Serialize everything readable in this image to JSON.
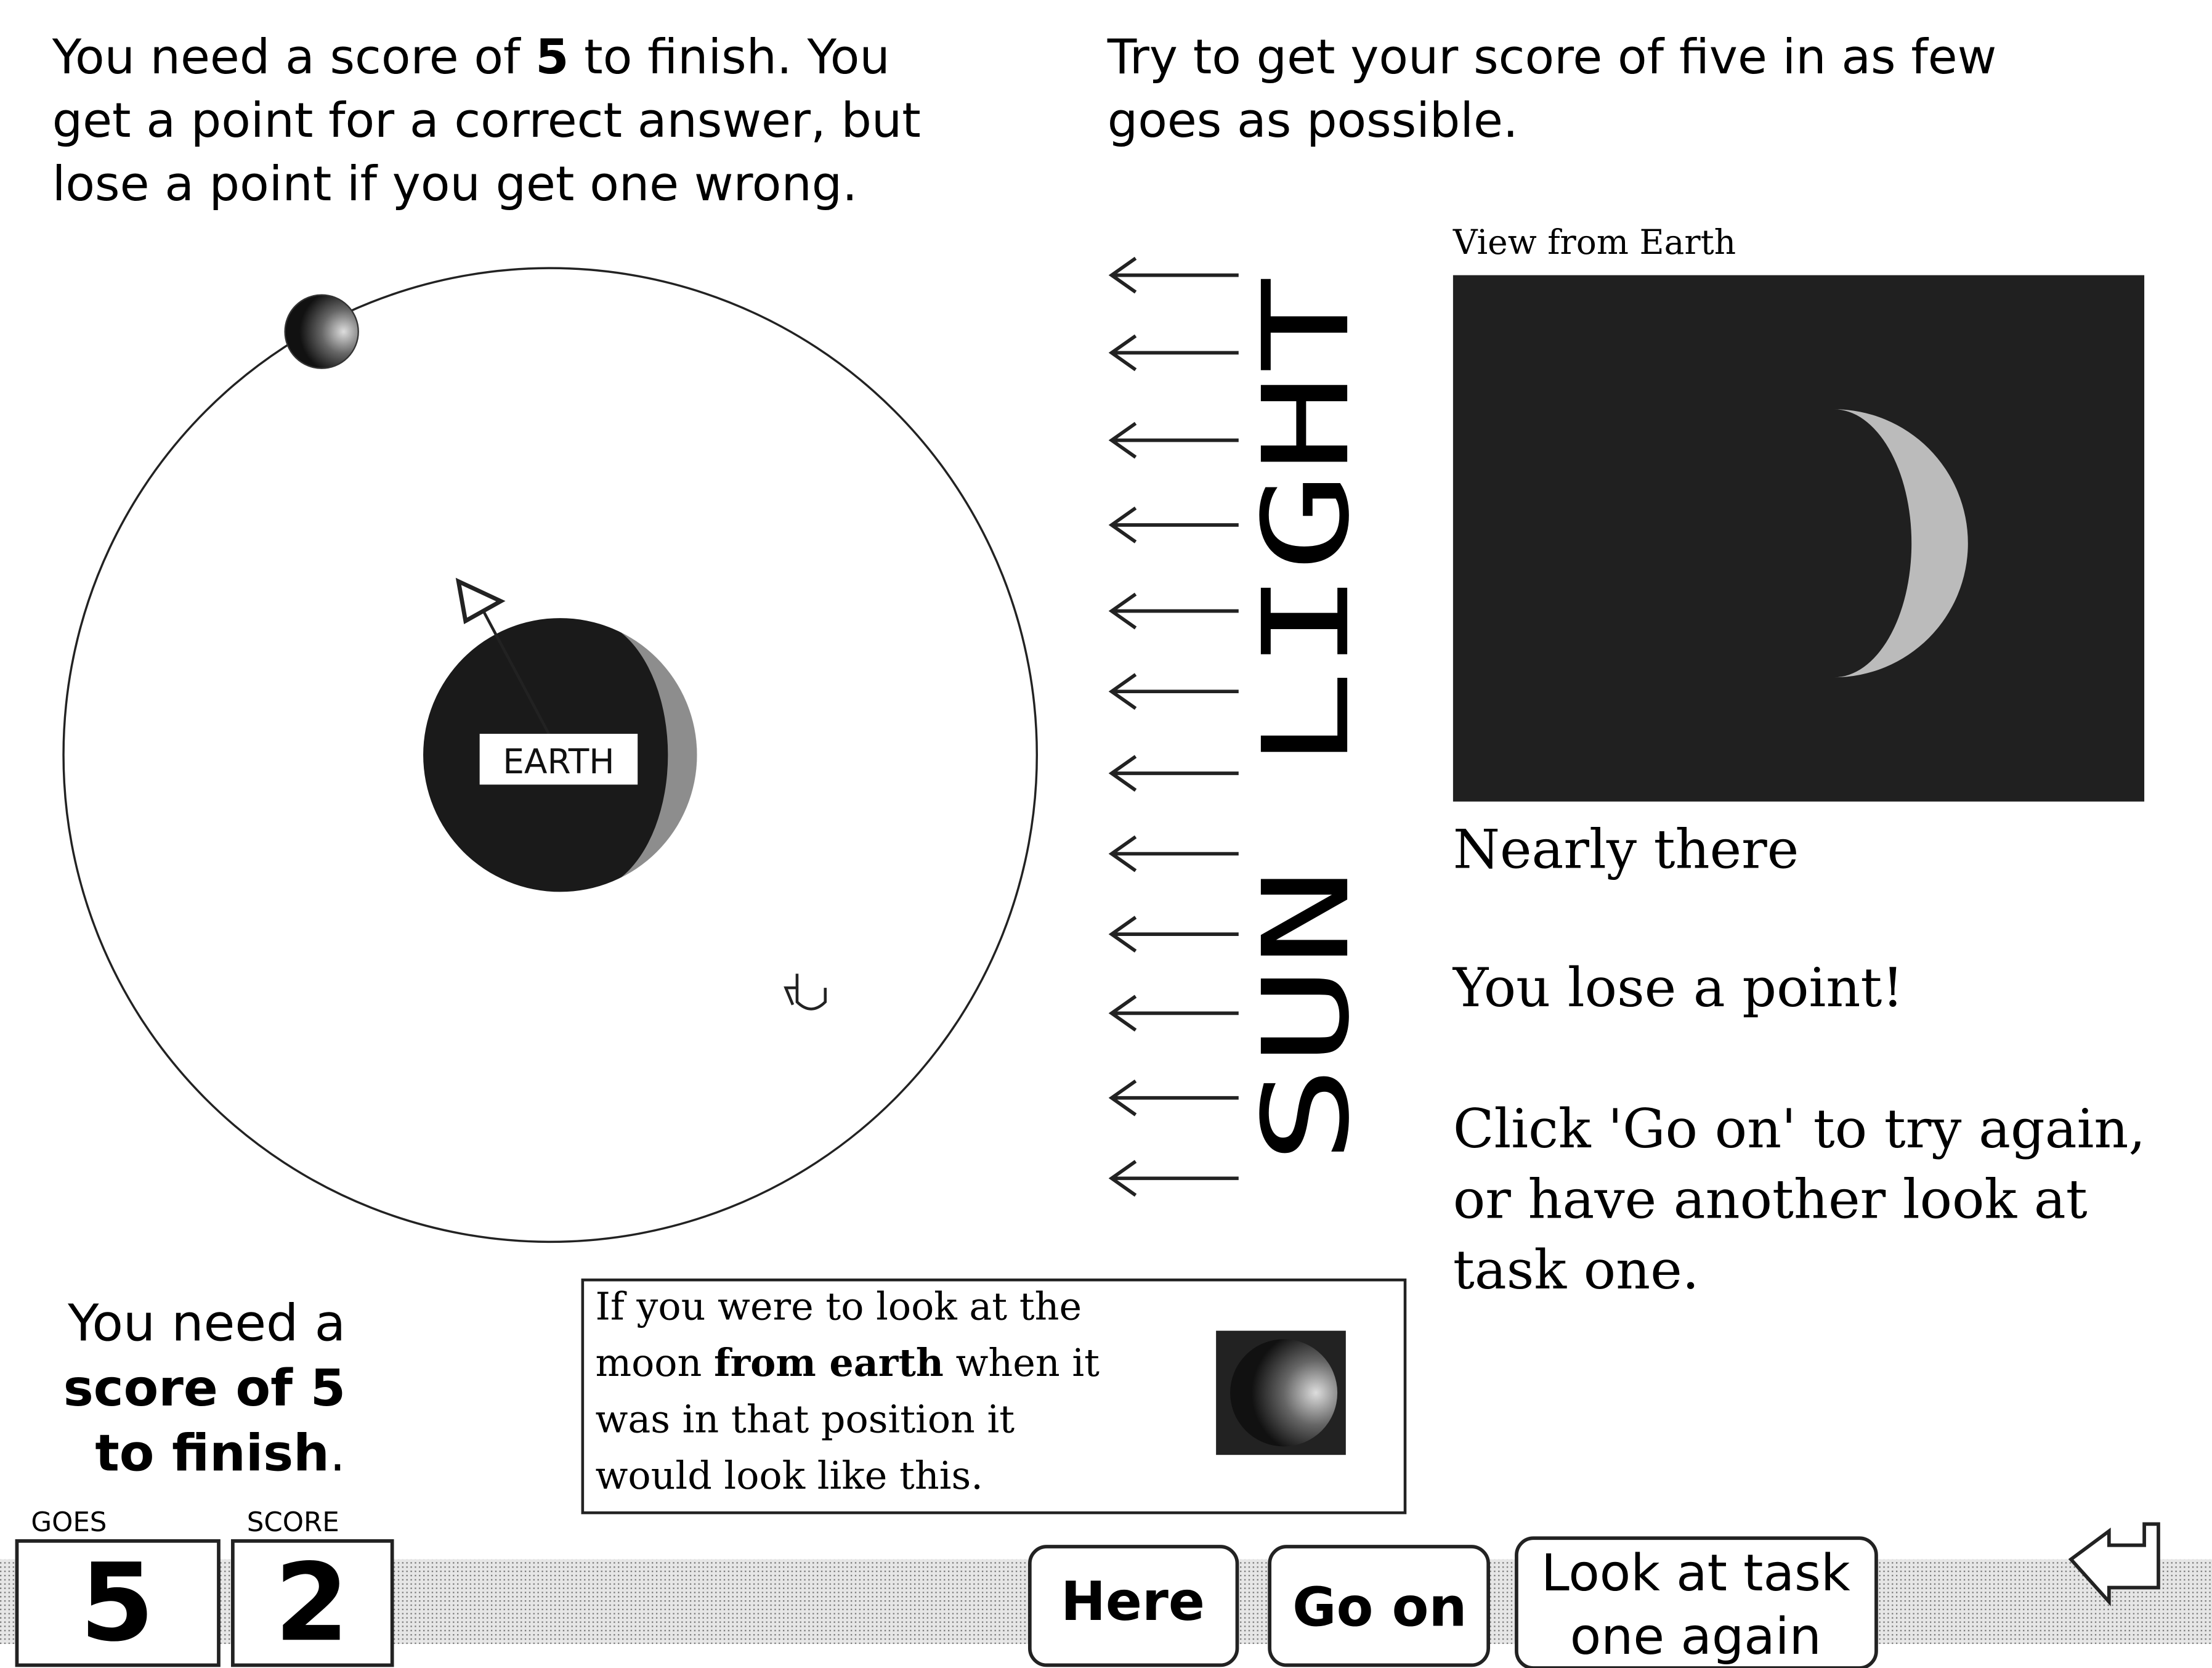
{
  "intro_left": {
    "lines": [
      [
        "You need a score of ",
        "5",
        " to finish. You"
      ],
      [
        "get a point for a correct answer, but"
      ],
      [
        "lose a point if you get one wrong."
      ]
    ]
  },
  "intro_right": {
    "lines": [
      "Try to get your score of five in as few",
      "goes as possible."
    ]
  },
  "diagram": {
    "earth_label": "EARTH",
    "sunlight": "SUN LIGHT"
  },
  "view": {
    "title": "View from Earth"
  },
  "feedback": {
    "status": "Nearly there",
    "result": "You lose a point!",
    "instruction": [
      "Click 'Go on' to try again,",
      "or have another look at",
      "task one."
    ]
  },
  "reminder": {
    "lines": [
      [
        "You need a"
      ],
      [
        "score of 5"
      ],
      [
        "to finish",
        "."
      ]
    ]
  },
  "info_box": {
    "lines": [
      [
        "If you were to look at the"
      ],
      [
        "moon ",
        "from earth",
        " when it"
      ],
      [
        "was in that position it"
      ],
      [
        "would look like this."
      ]
    ]
  },
  "counters": {
    "goes": {
      "label": "GOES",
      "value": "5"
    },
    "score": {
      "label": "SCORE",
      "value": "2"
    }
  },
  "buttons": {
    "here": "Here",
    "go_on": "Go on",
    "look_again": [
      "Look at task",
      "one again"
    ]
  }
}
